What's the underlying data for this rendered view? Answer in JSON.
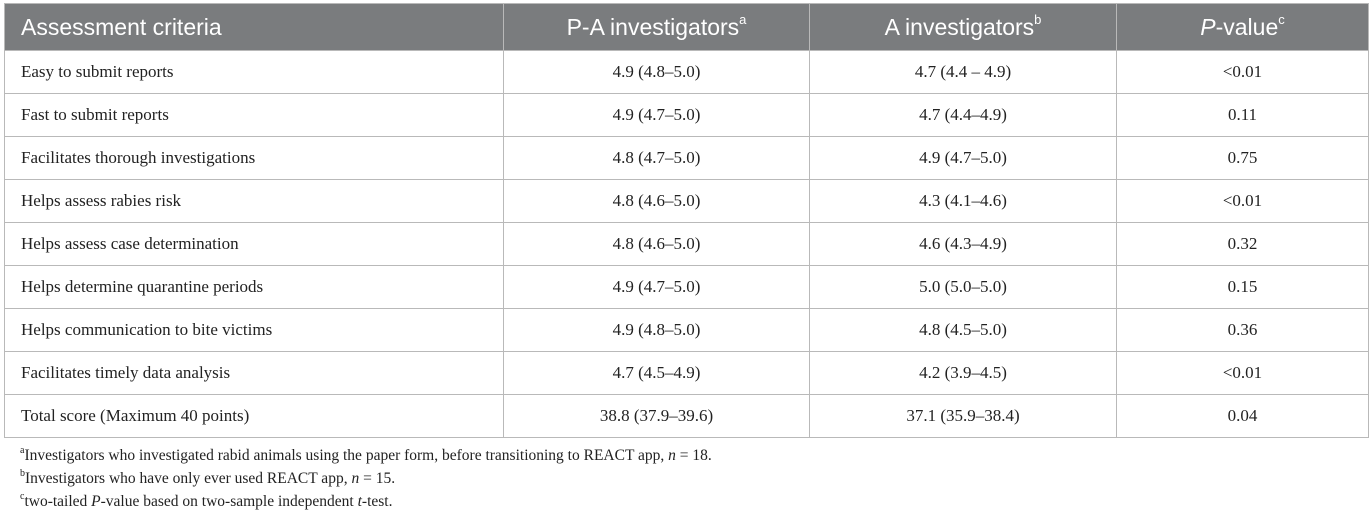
{
  "table": {
    "headers": {
      "criteria": "Assessment criteria",
      "pa_label": "P-A investigators",
      "pa_sup": "a",
      "a_label": "A investigators",
      "a_sup": "b",
      "p_italic": "P",
      "p_rest": "-value",
      "p_sup": "c"
    },
    "rows": [
      {
        "criteria": "Easy to submit reports",
        "pa": "4.9 (4.8–5.0)",
        "a": "4.7 (4.4 – 4.9)",
        "p": "<0.01"
      },
      {
        "criteria": "Fast to submit reports",
        "pa": "4.9 (4.7–5.0)",
        "a": "4.7 (4.4–4.9)",
        "p": "0.11"
      },
      {
        "criteria": "Facilitates thorough investigations",
        "pa": "4.8 (4.7–5.0)",
        "a": "4.9 (4.7–5.0)",
        "p": "0.75"
      },
      {
        "criteria": "Helps assess rabies risk",
        "pa": "4.8 (4.6–5.0)",
        "a": "4.3 (4.1–4.6)",
        "p": "<0.01"
      },
      {
        "criteria": "Helps assess case determination",
        "pa": "4.8 (4.6–5.0)",
        "a": "4.6 (4.3–4.9)",
        "p": "0.32"
      },
      {
        "criteria": "Helps determine quarantine periods",
        "pa": "4.9 (4.7–5.0)",
        "a": "5.0 (5.0–5.0)",
        "p": "0.15"
      },
      {
        "criteria": "Helps communication to bite victims",
        "pa": "4.9 (4.8–5.0)",
        "a": "4.8 (4.5–5.0)",
        "p": "0.36"
      },
      {
        "criteria": "Facilitates timely data analysis",
        "pa": "4.7 (4.5–4.9)",
        "a": "4.2 (3.9–4.5)",
        "p": "<0.01"
      },
      {
        "criteria": "Total score (Maximum 40 points)",
        "pa": "38.8 (37.9–39.6)",
        "a": "37.1 (35.9–38.4)",
        "p": "0.04"
      }
    ]
  },
  "footnotes": {
    "a": {
      "sup": "a",
      "pre": "Investigators who investigated rabid animals using the paper form, before transitioning to REACT app, ",
      "var": "n",
      "post": " = 18."
    },
    "b": {
      "sup": "b",
      "pre": "Investigators who have only ever used REACT app, ",
      "var": "n",
      "post": " = 15."
    },
    "c": {
      "sup": "c",
      "pre": "two-tailed ",
      "var1": "P",
      "mid": "-value based on two-sample independent ",
      "var2": "t",
      "post": "-test."
    }
  }
}
